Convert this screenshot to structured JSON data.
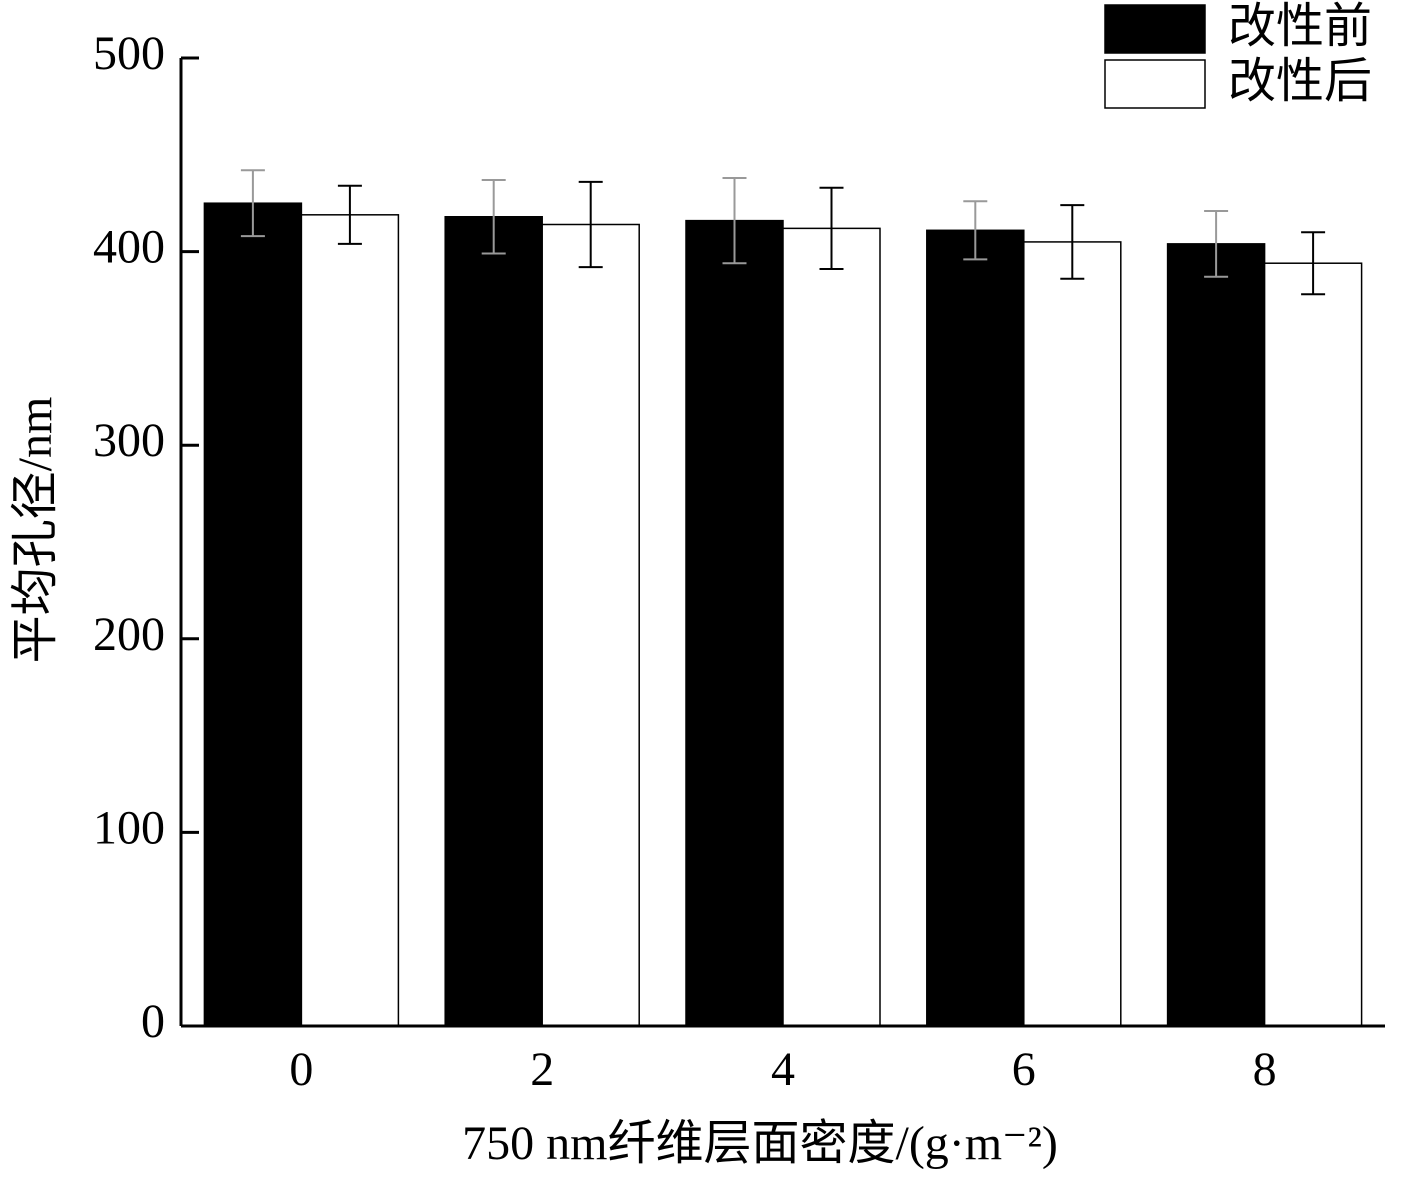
{
  "chart_data": {
    "type": "bar",
    "y_label": "平均孔径/nm",
    "x_label": "750 nm纤维层面密度/(g·m⁻²)",
    "categories": [
      "0",
      "2",
      "4",
      "6",
      "8"
    ],
    "series": [
      {
        "name": "改性前",
        "color": "#000000",
        "error_color": "#999999",
        "values": [
          425,
          418,
          416,
          411,
          404
        ],
        "errors": [
          17,
          19,
          22,
          15,
          17
        ]
      },
      {
        "name": "改性后",
        "color": "#ffffff",
        "error_color": "#000000",
        "values": [
          419,
          414,
          412,
          405,
          394
        ],
        "errors": [
          15,
          22,
          21,
          19,
          16
        ]
      }
    ],
    "ylim": [
      0,
      500
    ],
    "yticks": [
      0,
      100,
      200,
      300,
      400,
      500
    ],
    "legend": "top-right"
  }
}
